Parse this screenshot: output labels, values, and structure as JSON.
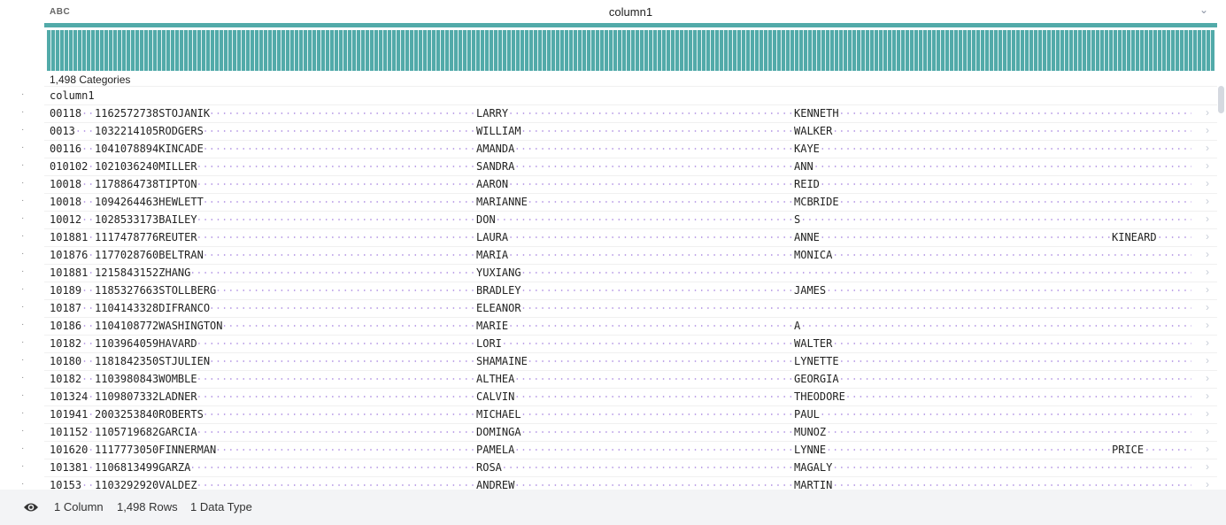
{
  "header": {
    "type_label": "ABC",
    "column_title": "column1"
  },
  "histogram": {
    "color": "#52aaa9",
    "categories_label": "1,498 Categories"
  },
  "column_header": "column1",
  "rows": [
    [
      "00118",
      "1162572738STOJANIK",
      "LARRY",
      "KENNETH",
      ""
    ],
    [
      "0013",
      "1032214105RODGERS",
      "WILLIAM",
      "WALKER",
      ""
    ],
    [
      "00116",
      "1041078894KINCADE",
      "AMANDA",
      "KAYE",
      ""
    ],
    [
      "010102",
      "1021036240MILLER",
      "SANDRA",
      "ANN",
      ""
    ],
    [
      "10018",
      "1178864738TIPTON",
      "AARON",
      "REID",
      ""
    ],
    [
      "10018",
      "1094264463HEWLETT",
      "MARIANNE",
      "MCBRIDE",
      ""
    ],
    [
      "10012",
      "1028533173BAILEY",
      "DON",
      "S",
      ""
    ],
    [
      "101881",
      "1117478776REUTER",
      "LAURA",
      "ANNE",
      "KINEARD"
    ],
    [
      "101876",
      "1177028760BELTRAN",
      "MARIA",
      "MONICA",
      ""
    ],
    [
      "101881",
      "1215843152ZHANG",
      "YUXIANG",
      "",
      ""
    ],
    [
      "10189",
      "1185327663STOLLBERG",
      "BRADLEY",
      "JAMES",
      ""
    ],
    [
      "10187",
      "1104143328DIFRANCO",
      "ELEANOR",
      "",
      ""
    ],
    [
      "10186",
      "1104108772WASHINGTON",
      "MARIE",
      "A",
      ""
    ],
    [
      "10182",
      "1103964059HAVARD",
      "LORI",
      "WALTER",
      ""
    ],
    [
      "10180",
      "1181842350STJULIEN",
      "SHAMAINE",
      "LYNETTE",
      ""
    ],
    [
      "10182",
      "1103980843WOMBLE",
      "ALTHEA",
      "GEORGIA",
      ""
    ],
    [
      "101324",
      "1109807332LADNER",
      "CALVIN",
      "THEODORE",
      ""
    ],
    [
      "101941",
      "2003253840ROBERTS",
      "MICHAEL",
      "PAUL",
      ""
    ],
    [
      "101152",
      "1105719682GARCIA",
      "DOMINGA",
      "MUNOZ",
      ""
    ],
    [
      "101620",
      "1117773050FINNERMAN",
      "PAMELA",
      "LYNNE",
      "PRICE"
    ],
    [
      "101381",
      "1106813499GARZA",
      "ROSA",
      "MAGALY",
      ""
    ],
    [
      "10153",
      "1103292920VALDEZ",
      "ANDREW",
      "MARTIN",
      ""
    ]
  ],
  "footer": {
    "columns": "1 Column",
    "rows": "1,498 Rows",
    "types": "1 Data Type"
  }
}
